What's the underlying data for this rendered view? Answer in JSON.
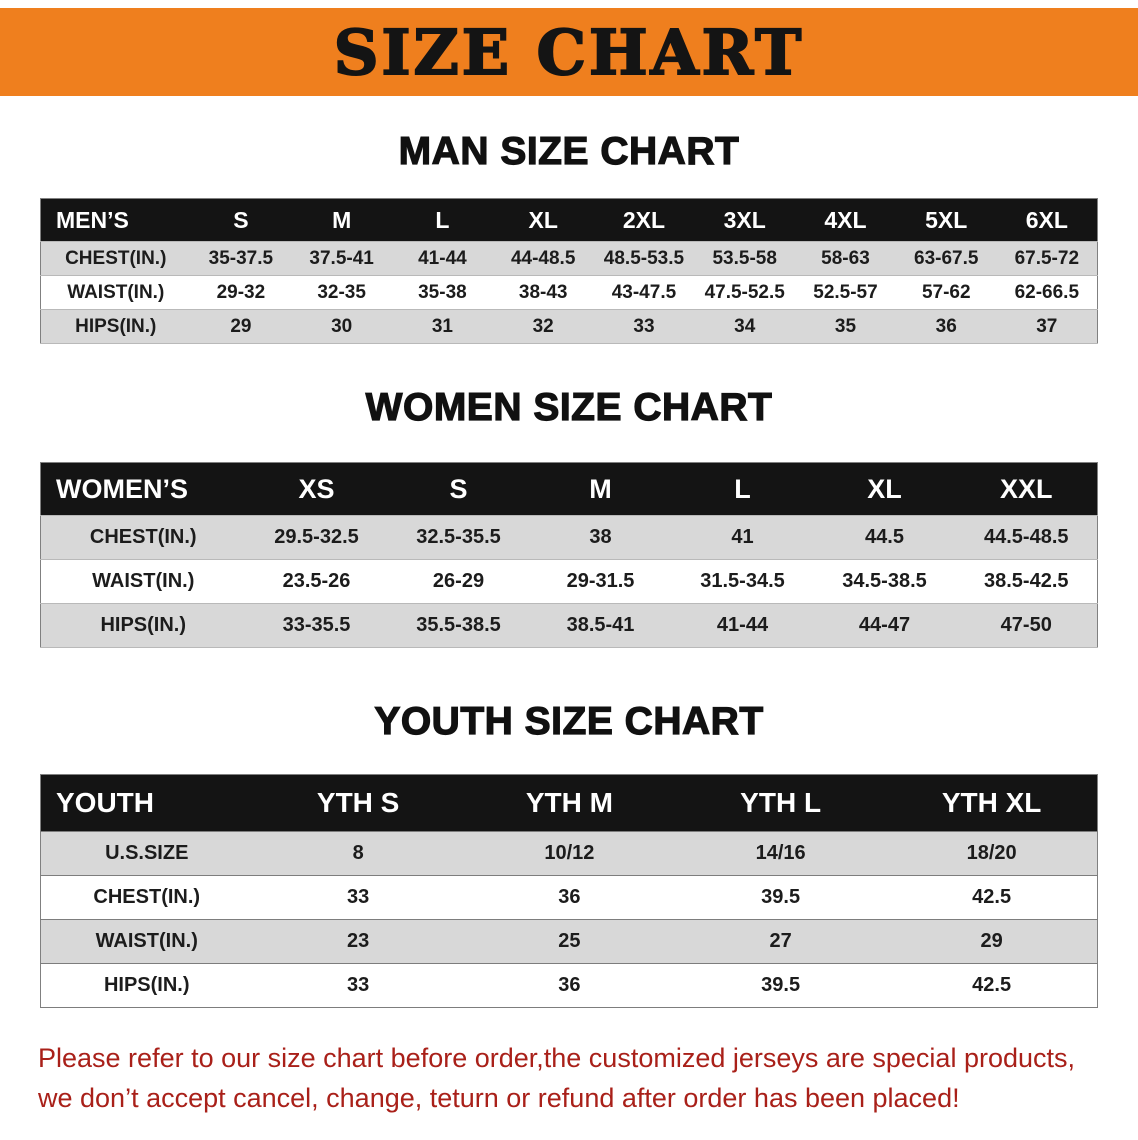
{
  "banner": {
    "title": "SIZE CHART"
  },
  "colors": {
    "banner_bg": "#ef7f1e",
    "title_color": "#141414",
    "header_bg": "#141414",
    "row_alt": "#d8d8d8",
    "note_color": "#a92019"
  },
  "chart_data": [
    {
      "type": "table",
      "title": "MAN SIZE CHART",
      "columns": [
        "MEN’S",
        "S",
        "M",
        "L",
        "XL",
        "2XL",
        "3XL",
        "4XL",
        "5XL",
        "6XL"
      ],
      "rows": [
        [
          "CHEST(IN.)",
          "35-37.5",
          "37.5-41",
          "41-44",
          "44-48.5",
          "48.5-53.5",
          "53.5-58",
          "58-63",
          "63-67.5",
          "67.5-72"
        ],
        [
          "WAIST(IN.)",
          "29-32",
          "32-35",
          "35-38",
          "38-43",
          "43-47.5",
          "47.5-52.5",
          "52.5-57",
          "57-62",
          "62-66.5"
        ],
        [
          "HIPS(IN.)",
          "29",
          "30",
          "31",
          "32",
          "33",
          "34",
          "35",
          "36",
          "37"
        ]
      ]
    },
    {
      "type": "table",
      "title": "WOMEN SIZE CHART",
      "columns": [
        "WOMEN’S",
        "XS",
        "S",
        "M",
        "L",
        "XL",
        "XXL"
      ],
      "rows": [
        [
          "CHEST(IN.)",
          "29.5-32.5",
          "32.5-35.5",
          "38",
          "41",
          "44.5",
          "44.5-48.5"
        ],
        [
          "WAIST(IN.)",
          "23.5-26",
          "26-29",
          "29-31.5",
          "31.5-34.5",
          "34.5-38.5",
          "38.5-42.5"
        ],
        [
          "HIPS(IN.)",
          "33-35.5",
          "35.5-38.5",
          "38.5-41",
          "41-44",
          "44-47",
          "47-50"
        ]
      ]
    },
    {
      "type": "table",
      "title": "YOUTH SIZE CHART",
      "columns": [
        "YOUTH",
        "YTH S",
        "YTH M",
        "YTH L",
        "YTH XL"
      ],
      "rows": [
        [
          "U.S.SIZE",
          "8",
          "10/12",
          "14/16",
          "18/20"
        ],
        [
          "CHEST(IN.)",
          "33",
          "36",
          "39.5",
          "42.5"
        ],
        [
          "WAIST(IN.)",
          "23",
          "25",
          "27",
          "29"
        ],
        [
          "HIPS(IN.)",
          "33",
          "36",
          "39.5",
          "42.5"
        ]
      ]
    }
  ],
  "note": {
    "line1": "Please refer to our size chart before order,the customized jerseys are special products,",
    "line2": "we don’t accept cancel, change, teturn or refund after order has been placed!"
  }
}
